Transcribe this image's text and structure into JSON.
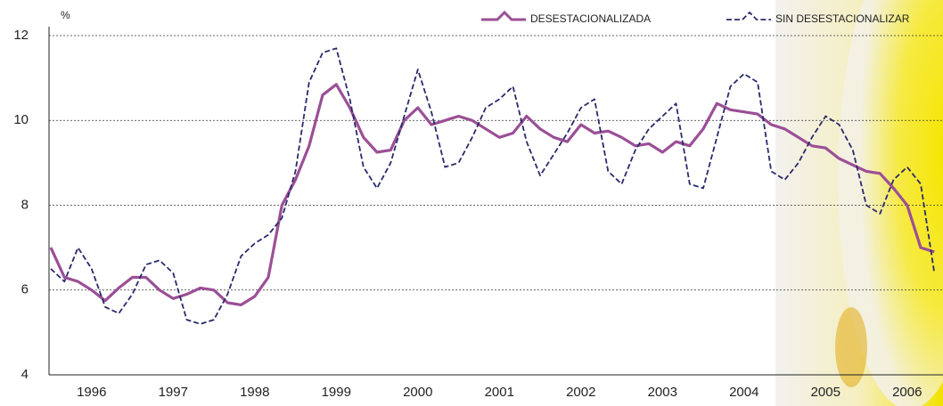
{
  "chart_data": {
    "type": "line",
    "y_label": "%",
    "categories": [
      null,
      null,
      null,
      "1996",
      null,
      null,
      null,
      null,
      null,
      "1997",
      null,
      null,
      null,
      null,
      null,
      "1998",
      null,
      null,
      null,
      null,
      null,
      "1999",
      null,
      null,
      null,
      null,
      null,
      "2000",
      null,
      null,
      null,
      null,
      null,
      "2001",
      null,
      null,
      null,
      null,
      null,
      "2002",
      null,
      null,
      null,
      null,
      null,
      "2003",
      null,
      null,
      null,
      null,
      null,
      "2004",
      null,
      null,
      null,
      null,
      null,
      "2005",
      null,
      null,
      null,
      null,
      null,
      "2006",
      null,
      null
    ],
    "series": [
      {
        "name": "DESESTACIONALIZADA",
        "color": "#9b4f96",
        "dashed": false,
        "values": [
          7.0,
          6.3,
          6.2,
          6.0,
          5.75,
          6.05,
          6.3,
          6.3,
          6.0,
          5.8,
          5.9,
          6.05,
          6.0,
          5.7,
          5.65,
          5.85,
          6.3,
          8.0,
          8.6,
          9.4,
          10.6,
          10.85,
          10.3,
          9.6,
          9.25,
          9.3,
          10.0,
          10.3,
          9.9,
          10.0,
          10.1,
          10.0,
          9.8,
          9.6,
          9.7,
          10.1,
          9.8,
          9.6,
          9.5,
          9.9,
          9.7,
          9.75,
          9.6,
          9.4,
          9.45,
          9.25,
          9.5,
          9.4,
          9.8,
          10.4,
          10.25,
          10.2,
          10.15,
          9.9,
          9.8,
          9.6,
          9.4,
          9.35,
          9.1,
          8.95,
          8.8,
          8.75,
          8.4,
          8.0,
          7.0,
          6.9
        ]
      },
      {
        "name": "SIN DESESTACIONALIZAR",
        "color": "#2b2a6b",
        "dashed": true,
        "values": [
          6.5,
          6.2,
          7.0,
          6.5,
          5.6,
          5.45,
          5.9,
          6.6,
          6.7,
          6.4,
          5.3,
          5.2,
          5.3,
          5.9,
          6.8,
          7.1,
          7.3,
          7.7,
          8.8,
          10.9,
          11.6,
          11.7,
          10.5,
          8.9,
          8.4,
          9.0,
          10.1,
          11.2,
          10.2,
          8.9,
          9.0,
          9.6,
          10.3,
          10.5,
          10.8,
          9.5,
          8.7,
          9.2,
          9.7,
          10.3,
          10.5,
          8.8,
          8.5,
          9.3,
          9.8,
          10.1,
          10.4,
          8.5,
          8.4,
          9.6,
          10.8,
          11.1,
          10.9,
          8.8,
          8.6,
          9.0,
          9.6,
          10.1,
          9.9,
          9.3,
          8.0,
          7.8,
          8.6,
          8.9,
          8.5,
          6.4
        ]
      }
    ],
    "ylim": [
      4,
      12
    ],
    "yticks": [
      4,
      6,
      8,
      10,
      12
    ],
    "grid": true,
    "legend": "top-right"
  }
}
